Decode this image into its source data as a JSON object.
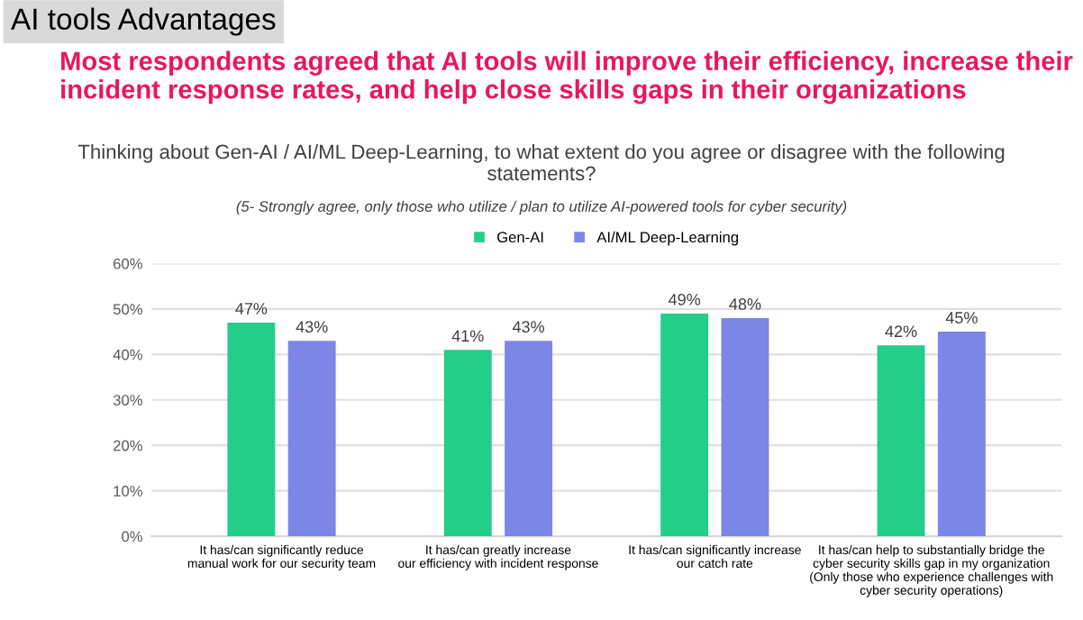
{
  "chart_data": {
    "type": "bar",
    "title": "AI tools Advantages",
    "subtitle": "Most respondents agreed that AI tools will improve their efficiency, increase their incident response rates, and help close skills gaps in their organizations",
    "annotations": [
      "Thinking about Gen-AI / AI/ML Deep-Learning, to what extent do you agree or disagree with the following statements?",
      "(5- Strongly agree, only those who utilize / plan to utilize AI-powered tools for cyber security)"
    ],
    "categories": [
      "It has/can significantly reduce\nmanual work for our security team",
      "It has/can greatly increase\nour efficiency with incident response",
      "It has/can significantly increase\nour catch rate",
      "It has/can help to substantially bridge the\ncyber security skills gap in my organization\n(Only those who experience challenges with\ncyber security operations)"
    ],
    "series": [
      {
        "name": "Gen-AI",
        "color": "#23ce8a",
        "values": [
          47,
          41,
          49,
          42
        ],
        "value_labels": [
          "47%",
          "41%",
          "49%",
          "42%"
        ]
      },
      {
        "name": "AI/ML Deep-Learning",
        "color": "#7b86e6",
        "values": [
          43,
          43,
          48,
          45
        ],
        "value_labels": [
          "43%",
          "43%",
          "48%",
          "45%"
        ]
      }
    ],
    "ylim": [
      0,
      60
    ],
    "yticks": [
      {
        "value": 0,
        "label": "0%"
      },
      {
        "value": 10,
        "label": "10%"
      },
      {
        "value": 20,
        "label": "20%"
      },
      {
        "value": 30,
        "label": "30%"
      },
      {
        "value": 40,
        "label": "40%"
      },
      {
        "value": 50,
        "label": "50%"
      },
      {
        "value": 60,
        "label": "60%"
      }
    ],
    "grid": "y",
    "legend": "top"
  }
}
